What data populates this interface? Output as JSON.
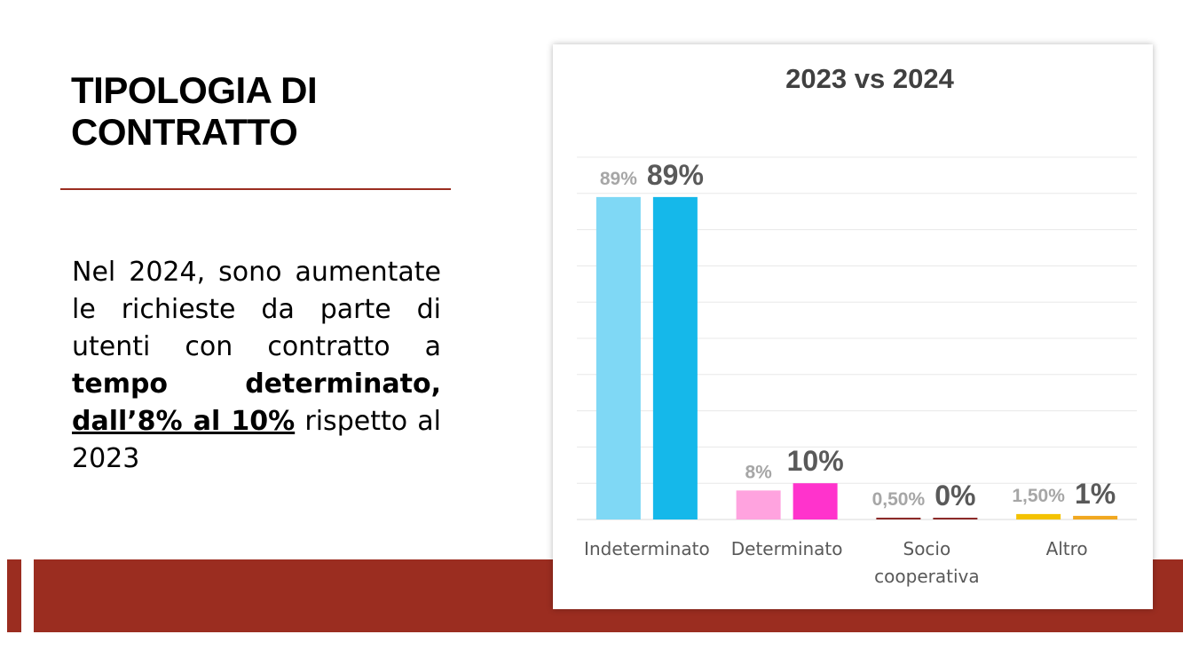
{
  "slide": {
    "title_line1": "TIPOLOGIA DI",
    "title_line2": "CONTRATTO",
    "body": {
      "t1": "Nel 2024, sono aumentate le richieste da parte di utenti con contratto a ",
      "t2": "tempo determinato,",
      "t3": " ",
      "t4": "dall’8% al 10%",
      "t5": " rispetto al 2023"
    }
  },
  "chart_data": {
    "type": "bar",
    "title": "2023 vs 2024",
    "categories": [
      "Indeterminato",
      "Determinato",
      "Socio cooperativa",
      "Altro"
    ],
    "category_lines": [
      [
        "Indeterminato"
      ],
      [
        "Determinato"
      ],
      [
        "Socio",
        "cooperativa"
      ],
      [
        "Altro"
      ]
    ],
    "series": [
      {
        "values": [
          89,
          8,
          0.5,
          1.5
        ],
        "labels": [
          "89%",
          "8%",
          "0,50%",
          "1,50%"
        ],
        "colors": [
          "#7fd8f5",
          "#ffa3df",
          "#8c2a28",
          "#f4c200"
        ]
      },
      {
        "values": [
          89,
          10,
          0.3,
          1
        ],
        "labels": [
          "89%",
          "10%",
          "0%",
          "1%"
        ],
        "colors": [
          "#15b8ea",
          "#ff33cc",
          "#8c2a28",
          "#f1a820"
        ]
      }
    ],
    "ylim": [
      0,
      100
    ],
    "grid": true,
    "legend": "none"
  }
}
